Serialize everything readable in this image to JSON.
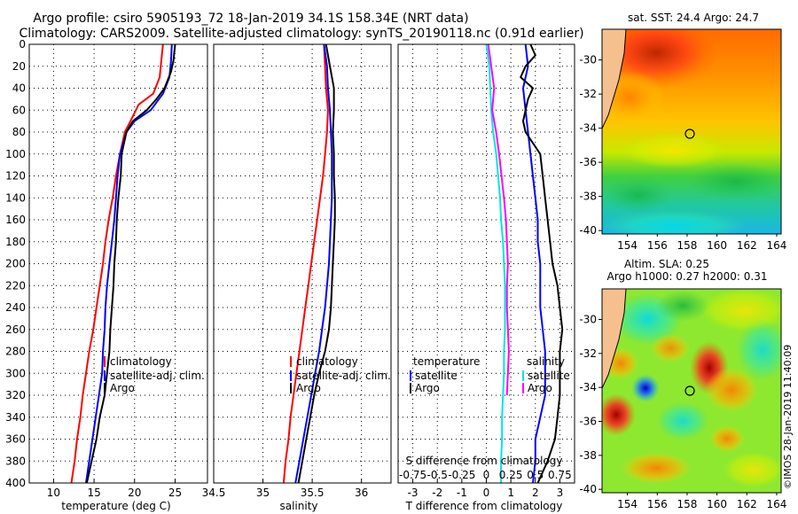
{
  "title_line1": "Argo profile: csiro 5905193_72 18-Jan-2019 34.1S 158.34E (NRT data)",
  "title_line2": "Climatology: CARS2009. Satellite-adjusted climatology: synTS_20190118.nc (0.91d earlier)",
  "watermark": "©IMOS 28-Jan-2019 11:40:09",
  "colors": {
    "climatology": "#ff0000",
    "satellite": "#0000ff",
    "argo": "#000000",
    "salinity_diff": "#ff00ff",
    "salinity_sat": "#00e5e5"
  },
  "chart_data": [
    {
      "type": "line",
      "id": "temperature",
      "xlabel": "temperature (deg C)",
      "ylabel": "",
      "xlim": [
        7,
        29
      ],
      "ylim": [
        0,
        400
      ],
      "xticks": [
        "10",
        "15",
        "20",
        "25"
      ],
      "xtick_values": [
        10,
        15,
        20,
        25
      ],
      "yticks": [
        "0",
        "20",
        "40",
        "60",
        "80",
        "100",
        "120",
        "140",
        "160",
        "180",
        "200",
        "220",
        "240",
        "260",
        "280",
        "300",
        "320",
        "340",
        "360",
        "380",
        "400"
      ],
      "legend": [
        "climatology",
        "satellite-adj. clim.",
        "Argo"
      ],
      "series": [
        {
          "name": "climatology",
          "color": "#ff0000",
          "points": [
            [
              23.5,
              0
            ],
            [
              23.3,
              15
            ],
            [
              23.1,
              30
            ],
            [
              22.3,
              45
            ],
            [
              20.5,
              55
            ],
            [
              19.5,
              70
            ],
            [
              18.8,
              80
            ],
            [
              18.2,
              100
            ],
            [
              17.7,
              120
            ],
            [
              17.3,
              140
            ],
            [
              16.8,
              160
            ],
            [
              16.4,
              180
            ],
            [
              16.1,
              200
            ],
            [
              15.7,
              220
            ],
            [
              15.3,
              240
            ],
            [
              14.9,
              260
            ],
            [
              14.4,
              280
            ],
            [
              14.0,
              300
            ],
            [
              13.6,
              320
            ],
            [
              13.3,
              340
            ],
            [
              12.9,
              360
            ],
            [
              12.6,
              380
            ],
            [
              12.2,
              400
            ]
          ]
        },
        {
          "name": "satellite-adj. clim.",
          "color": "#0000ff",
          "points": [
            [
              24.6,
              0
            ],
            [
              24.5,
              15
            ],
            [
              24.3,
              30
            ],
            [
              23.5,
              45
            ],
            [
              22.0,
              60
            ],
            [
              20.0,
              70
            ],
            [
              19.0,
              80
            ],
            [
              18.2,
              100
            ],
            [
              17.9,
              120
            ],
            [
              17.7,
              140
            ],
            [
              17.5,
              160
            ],
            [
              17.2,
              180
            ],
            [
              16.9,
              200
            ],
            [
              16.6,
              220
            ],
            [
              16.4,
              240
            ],
            [
              16.3,
              260
            ],
            [
              16.1,
              280
            ],
            [
              16.0,
              300
            ],
            [
              15.6,
              320
            ],
            [
              15.2,
              340
            ],
            [
              14.8,
              360
            ],
            [
              14.4,
              380
            ],
            [
              14.0,
              400
            ]
          ]
        },
        {
          "name": "Argo",
          "color": "#000000",
          "points": [
            [
              25.0,
              0
            ],
            [
              24.8,
              15
            ],
            [
              24.5,
              25
            ],
            [
              23.7,
              40
            ],
            [
              22.7,
              50
            ],
            [
              21.5,
              60
            ],
            [
              19.8,
              70
            ],
            [
              19.0,
              80
            ],
            [
              18.4,
              100
            ],
            [
              18.3,
              120
            ],
            [
              18.0,
              140
            ],
            [
              17.8,
              160
            ],
            [
              17.7,
              180
            ],
            [
              17.5,
              200
            ],
            [
              17.4,
              220
            ],
            [
              17.2,
              240
            ],
            [
              17.0,
              260
            ],
            [
              16.9,
              280
            ],
            [
              16.6,
              300
            ],
            [
              16.3,
              320
            ],
            [
              15.7,
              340
            ],
            [
              15.3,
              360
            ],
            [
              14.7,
              380
            ],
            [
              14.1,
              400
            ]
          ]
        }
      ]
    },
    {
      "type": "line",
      "id": "salinity",
      "xlabel": "salinity",
      "ylabel": "",
      "xlim": [
        34.5,
        36.3
      ],
      "ylim": [
        0,
        400
      ],
      "xticks": [
        "34.5",
        "35",
        "35.5",
        "36"
      ],
      "xtick_values": [
        34.5,
        35,
        35.5,
        36
      ],
      "legend": [
        "climatology",
        "satellite-adj. clim.",
        "Argo"
      ],
      "series": [
        {
          "name": "climatology",
          "color": "#ff0000",
          "points": [
            [
              35.62,
              0
            ],
            [
              35.63,
              20
            ],
            [
              35.64,
              40
            ],
            [
              35.66,
              60
            ],
            [
              35.65,
              80
            ],
            [
              35.63,
              100
            ],
            [
              35.61,
              120
            ],
            [
              35.58,
              140
            ],
            [
              35.55,
              160
            ],
            [
              35.52,
              180
            ],
            [
              35.49,
              200
            ],
            [
              35.46,
              220
            ],
            [
              35.43,
              240
            ],
            [
              35.4,
              260
            ],
            [
              35.37,
              280
            ],
            [
              35.34,
              300
            ],
            [
              35.31,
              320
            ],
            [
              35.28,
              340
            ],
            [
              35.26,
              360
            ],
            [
              35.23,
              380
            ],
            [
              35.21,
              400
            ]
          ]
        },
        {
          "name": "satellite-adj. clim.",
          "color": "#0000ff",
          "points": [
            [
              35.62,
              0
            ],
            [
              35.65,
              20
            ],
            [
              35.66,
              40
            ],
            [
              35.68,
              60
            ],
            [
              35.69,
              80
            ],
            [
              35.7,
              100
            ],
            [
              35.7,
              120
            ],
            [
              35.7,
              140
            ],
            [
              35.69,
              160
            ],
            [
              35.68,
              180
            ],
            [
              35.67,
              200
            ],
            [
              35.65,
              220
            ],
            [
              35.63,
              240
            ],
            [
              35.6,
              260
            ],
            [
              35.57,
              280
            ],
            [
              35.53,
              300
            ],
            [
              35.49,
              320
            ],
            [
              35.45,
              340
            ],
            [
              35.41,
              360
            ],
            [
              35.37,
              380
            ],
            [
              35.33,
              400
            ]
          ]
        },
        {
          "name": "Argo",
          "color": "#000000",
          "points": [
            [
              35.64,
              0
            ],
            [
              35.68,
              20
            ],
            [
              35.72,
              40
            ],
            [
              35.72,
              60
            ],
            [
              35.71,
              80
            ],
            [
              35.72,
              100
            ],
            [
              35.72,
              120
            ],
            [
              35.73,
              140
            ],
            [
              35.73,
              160
            ],
            [
              35.72,
              180
            ],
            [
              35.71,
              200
            ],
            [
              35.7,
              220
            ],
            [
              35.69,
              240
            ],
            [
              35.67,
              260
            ],
            [
              35.63,
              280
            ],
            [
              35.57,
              300
            ],
            [
              35.52,
              320
            ],
            [
              35.48,
              340
            ],
            [
              35.44,
              360
            ],
            [
              35.4,
              380
            ],
            [
              35.36,
              400
            ]
          ]
        }
      ]
    },
    {
      "type": "line",
      "id": "difference",
      "xlabel": "T difference from climatology",
      "x2label": "S difference from climatology",
      "xlim": [
        -3.6,
        3.6
      ],
      "ylim": [
        0,
        400
      ],
      "xticks": [
        "-3",
        "-2",
        "-1",
        "0",
        "1",
        "2",
        "3"
      ],
      "xtick_values": [
        -3,
        -2,
        -1,
        0,
        1,
        2,
        3
      ],
      "x2ticks": [
        "-0.75",
        "-0.5",
        "-0.25",
        "0",
        "0.25",
        "0.5",
        "0.75"
      ],
      "x2tick_values": [
        -0.75,
        -0.5,
        -0.25,
        0,
        0.25,
        0.5,
        0.75
      ],
      "legend_left_title": "temperature",
      "legend_right_title": "salinity",
      "legend_left": [
        "satellite",
        "Argo"
      ],
      "legend_right": [
        "satellite",
        "Argo"
      ],
      "series": [
        {
          "name": "temperature satellite",
          "color": "#0000ff",
          "points": [
            [
              1.6,
              0
            ],
            [
              1.7,
              20
            ],
            [
              1.5,
              40
            ],
            [
              1.6,
              60
            ],
            [
              1.7,
              80
            ],
            [
              1.8,
              100
            ],
            [
              1.9,
              120
            ],
            [
              2.0,
              140
            ],
            [
              2.1,
              160
            ],
            [
              2.1,
              180
            ],
            [
              2.2,
              200
            ],
            [
              2.2,
              220
            ],
            [
              2.2,
              240
            ],
            [
              2.3,
              260
            ],
            [
              2.4,
              280
            ],
            [
              2.4,
              300
            ],
            [
              2.4,
              320
            ],
            [
              2.2,
              340
            ],
            [
              2.0,
              360
            ],
            [
              2.0,
              380
            ],
            [
              1.9,
              400
            ]
          ]
        },
        {
          "name": "temperature Argo",
          "color": "#000000",
          "points": [
            [
              1.8,
              0
            ],
            [
              2.0,
              10
            ],
            [
              1.6,
              20
            ],
            [
              1.4,
              30
            ],
            [
              1.9,
              40
            ],
            [
              1.7,
              50
            ],
            [
              1.5,
              70
            ],
            [
              1.6,
              80
            ],
            [
              2.2,
              100
            ],
            [
              2.3,
              120
            ],
            [
              2.4,
              140
            ],
            [
              2.5,
              160
            ],
            [
              2.6,
              180
            ],
            [
              2.7,
              200
            ],
            [
              2.9,
              220
            ],
            [
              3.0,
              240
            ],
            [
              3.1,
              260
            ],
            [
              3.0,
              280
            ],
            [
              3.0,
              300
            ],
            [
              3.0,
              320
            ],
            [
              2.9,
              340
            ],
            [
              2.8,
              360
            ],
            [
              2.5,
              380
            ],
            [
              2.1,
              400
            ]
          ]
        },
        {
          "name": "salinity satellite",
          "color": "#00e5e5",
          "points": [
            [
              0.0,
              0
            ],
            [
              0.03,
              20
            ],
            [
              0.04,
              40
            ],
            [
              0.05,
              60
            ],
            [
              0.07,
              80
            ],
            [
              0.1,
              100
            ],
            [
              0.12,
              120
            ],
            [
              0.14,
              140
            ],
            [
              0.15,
              160
            ],
            [
              0.17,
              180
            ],
            [
              0.18,
              200
            ],
            [
              0.19,
              220
            ],
            [
              0.19,
              240
            ],
            [
              0.19,
              260
            ],
            [
              0.18,
              280
            ],
            [
              0.18,
              300
            ],
            [
              0.17,
              320
            ],
            [
              0.16,
              340
            ],
            [
              0.16,
              360
            ],
            [
              0.15,
              380
            ],
            [
              0.15,
              400
            ]
          ]
        },
        {
          "name": "salinity Argo",
          "color": "#ff00ff",
          "points": [
            [
              0.02,
              0
            ],
            [
              0.05,
              20
            ],
            [
              0.08,
              40
            ],
            [
              0.06,
              60
            ],
            [
              0.1,
              80
            ],
            [
              0.13,
              100
            ],
            [
              0.18,
              140
            ],
            [
              0.2,
              160
            ],
            [
              0.21,
              180
            ],
            [
              0.22,
              200
            ],
            [
              0.21,
              220
            ],
            [
              0.21,
              240
            ],
            [
              0.22,
              260
            ],
            [
              0.23,
              280
            ],
            [
              0.22,
              300
            ],
            [
              0.21,
              320
            ]
          ]
        }
      ]
    },
    {
      "type": "heatmap",
      "id": "sst_map",
      "title": "sat. SST: 24.4 Argo: 24.7",
      "xlim": [
        152.3,
        164.3
      ],
      "ylim": [
        -40.2,
        -28.2
      ],
      "xticks": [
        "154",
        "156",
        "158",
        "160",
        "162",
        "164"
      ],
      "xtick_values": [
        154,
        156,
        158,
        160,
        162,
        164
      ],
      "yticks": [
        "-30",
        "-32",
        "-34",
        "-36",
        "-38",
        "-40"
      ],
      "ytick_values": [
        -30,
        -32,
        -34,
        -36,
        -38,
        -40
      ],
      "marker": [
        158.34,
        -34.1
      ]
    },
    {
      "type": "heatmap",
      "id": "sla_map",
      "title": "Altim. SLA: 0.25",
      "subtitle": "Argo h1000: 0.27 h2000: 0.31",
      "xlim": [
        152.3,
        164.3
      ],
      "ylim": [
        -40.2,
        -28.2
      ],
      "xticks": [
        "154",
        "156",
        "158",
        "160",
        "162",
        "164"
      ],
      "xtick_values": [
        154,
        156,
        158,
        160,
        162,
        164
      ],
      "yticks": [
        "-30",
        "-32",
        "-34",
        "-36",
        "-38",
        "-40"
      ],
      "ytick_values": [
        -30,
        -32,
        -34,
        -36,
        -38,
        -40
      ],
      "marker": [
        158.34,
        -34.1
      ]
    }
  ]
}
